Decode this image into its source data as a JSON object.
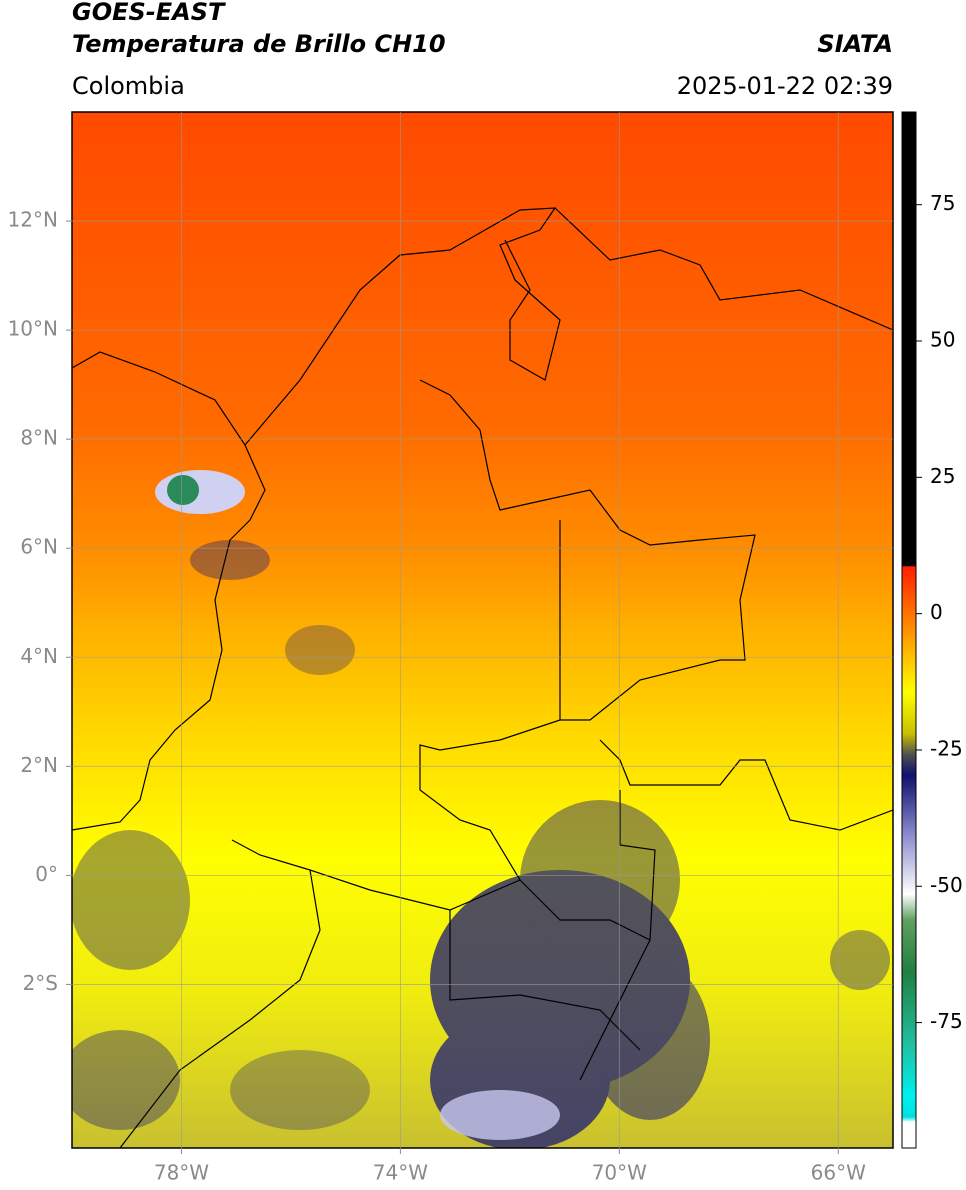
{
  "chart_data": {
    "type": "map",
    "title": "GOES-EAST",
    "subtitle": "Temperatura de Brillo CH10",
    "region": "Colombia",
    "source": "SIATA",
    "datetime": "2025-01-22 02:39",
    "xlim": [
      -80,
      -65
    ],
    "ylim": [
      -5,
      14
    ],
    "xticks": [
      {
        "value": -78,
        "label": "78°W"
      },
      {
        "value": -74,
        "label": "74°W"
      },
      {
        "value": -70,
        "label": "70°W"
      },
      {
        "value": -66,
        "label": "66°W"
      }
    ],
    "yticks": [
      {
        "value": 12,
        "label": "12°N"
      },
      {
        "value": 10,
        "label": "10°N"
      },
      {
        "value": 8,
        "label": "8°N"
      },
      {
        "value": 6,
        "label": "6°N"
      },
      {
        "value": 4,
        "label": "4°N"
      },
      {
        "value": 2,
        "label": "2°N"
      },
      {
        "value": 0,
        "label": "0°"
      },
      {
        "value": -2,
        "label": "2°S"
      }
    ],
    "grid": true,
    "colorbar": {
      "lim": [
        -98,
        92
      ],
      "ticks": [
        75,
        50,
        25,
        0,
        -25,
        -50,
        -75
      ]
    }
  }
}
